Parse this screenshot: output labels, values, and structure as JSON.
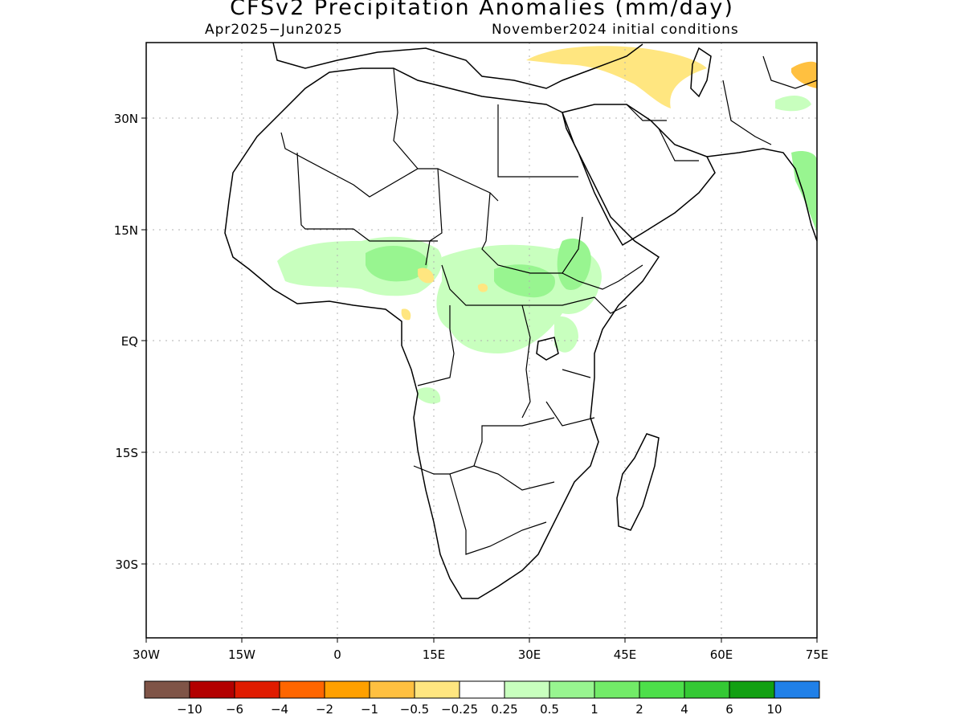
{
  "title": "CFSv2 Precipitation Anomalies (mm/day)",
  "subtitle_left": "Apr2025−Jun2025",
  "subtitle_right": "November2024 initial conditions",
  "map": {
    "lon_range": [
      -30,
      75
    ],
    "lat_range": [
      -46,
      38
    ],
    "grid": true,
    "lon_ticks": [
      "30W",
      "15W",
      "0",
      "15E",
      "30E",
      "45E",
      "60E",
      "75E"
    ],
    "lat_ticks": [
      "30N",
      "15N",
      "EQ",
      "15S",
      "30S"
    ]
  },
  "colorbar": {
    "colors": [
      "#7f5447",
      "#b30000",
      "#e01b00",
      "#ff6600",
      "#ffa000",
      "#ffc040",
      "#ffe680",
      "#ffffff",
      "#c8ffbe",
      "#98f590",
      "#72eb68",
      "#4ddf4a",
      "#34c934",
      "#12a012",
      "#2080e8"
    ],
    "labels": [
      "−10",
      "−6",
      "−4",
      "−2",
      "−1",
      "−0.5",
      "−0.25",
      "0.25",
      "0.5",
      "1",
      "2",
      "4",
      "6",
      "10"
    ]
  }
}
